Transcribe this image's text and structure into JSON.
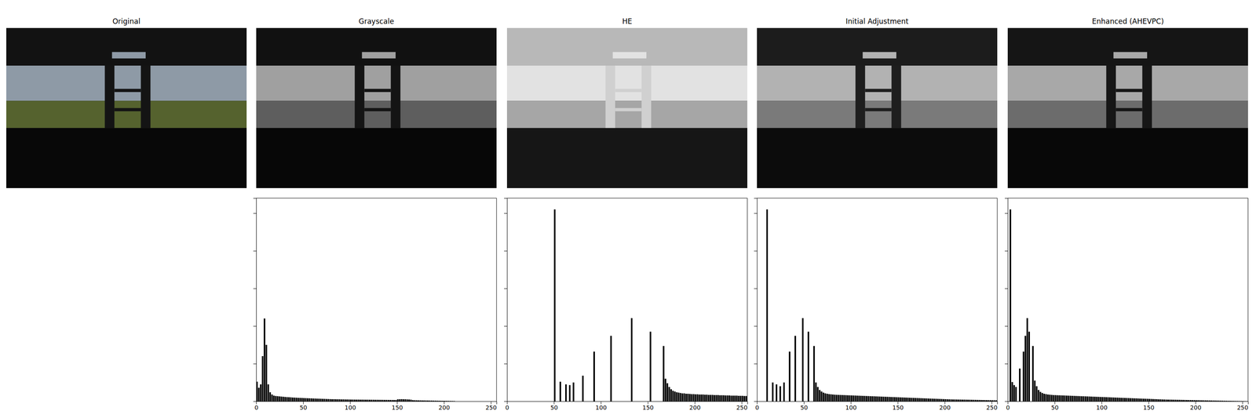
{
  "panels": [
    "Original",
    "Grayscale",
    "HE",
    "Initial Adjustment",
    "Enhanced (AHEVPC)"
  ],
  "chart_data": [
    {
      "type": "histogram",
      "color": "#000000",
      "tick_labels": "x",
      "xlim": [
        0,
        256
      ],
      "ylim": [
        0,
        54000
      ],
      "xticks": [
        0,
        50,
        100,
        150,
        200,
        250
      ],
      "yticks": [
        0,
        10000,
        20000,
        30000,
        40000,
        50000
      ],
      "bins": [
        0,
        2,
        4,
        6,
        8,
        10,
        12,
        14,
        16,
        18,
        20,
        22,
        24,
        26,
        28,
        30,
        32,
        34,
        36,
        38,
        40,
        42,
        44,
        46,
        48,
        50,
        52,
        54,
        56,
        58,
        60,
        62,
        64,
        66,
        68,
        70,
        72,
        74,
        76,
        78,
        80,
        82,
        84,
        86,
        88,
        90,
        92,
        94,
        96,
        98,
        100,
        102,
        104,
        106,
        108,
        110,
        112,
        114,
        116,
        118,
        120,
        122,
        124,
        126,
        128,
        130,
        132,
        134,
        136,
        138,
        140,
        142,
        144,
        146,
        148,
        150,
        152,
        154,
        156,
        158,
        160,
        162,
        164,
        166,
        168,
        170,
        172,
        174,
        176,
        178,
        180,
        182,
        184,
        186,
        188,
        190,
        192,
        194,
        196,
        198,
        200,
        202,
        204,
        206,
        208,
        210,
        212,
        214,
        216,
        218,
        220,
        222,
        224,
        226,
        228,
        230,
        232,
        234,
        236,
        238,
        240,
        242,
        244,
        246,
        248,
        250,
        252,
        254,
        256
      ],
      "counts": [
        5200,
        3600,
        4500,
        12000,
        22000,
        15000,
        4500,
        2400,
        1800,
        1500,
        1400,
        1350,
        1300,
        1250,
        1200,
        1150,
        1100,
        1080,
        1050,
        1000,
        980,
        950,
        920,
        900,
        880,
        850,
        830,
        810,
        790,
        770,
        750,
        730,
        710,
        690,
        670,
        650,
        630,
        610,
        590,
        570,
        560,
        550,
        540,
        530,
        520,
        510,
        500,
        490,
        480,
        470,
        460,
        450,
        445,
        440,
        435,
        430,
        425,
        420,
        415,
        410,
        405,
        400,
        395,
        390,
        385,
        380,
        375,
        370,
        365,
        360,
        355,
        350,
        345,
        340,
        335,
        520,
        540,
        560,
        550,
        530,
        500,
        480,
        420,
        300,
        280,
        260,
        250,
        240,
        230,
        220,
        210,
        200,
        190,
        180,
        170,
        160,
        150,
        140,
        130,
        120,
        110,
        100,
        90,
        80,
        70,
        60,
        0,
        0,
        0,
        0,
        0,
        0,
        0,
        0,
        0,
        0,
        0,
        0,
        0,
        0,
        0,
        0,
        0,
        0,
        0,
        0,
        0,
        0
      ]
    },
    {
      "type": "histogram",
      "color": "#000000",
      "tick_labels": "x",
      "xlim": [
        0,
        256
      ],
      "ylim": [
        0,
        54000
      ],
      "xticks": [
        0,
        50,
        100,
        150,
        200,
        250
      ],
      "yticks": [
        0,
        10000,
        20000,
        30000,
        40000,
        50000
      ],
      "bins": [
        0,
        2,
        4,
        6,
        8,
        10,
        12,
        14,
        16,
        18,
        20,
        22,
        24,
        26,
        28,
        30,
        32,
        34,
        36,
        38,
        40,
        42,
        44,
        46,
        48,
        50,
        52,
        54,
        56,
        58,
        60,
        62,
        64,
        66,
        68,
        70,
        72,
        74,
        76,
        78,
        80,
        82,
        84,
        86,
        88,
        90,
        92,
        94,
        96,
        98,
        100,
        102,
        104,
        106,
        108,
        110,
        112,
        114,
        116,
        118,
        120,
        122,
        124,
        126,
        128,
        130,
        132,
        134,
        136,
        138,
        140,
        142,
        144,
        146,
        148,
        150,
        152,
        154,
        156,
        158,
        160,
        162,
        164,
        166,
        168,
        170,
        172,
        174,
        176,
        178,
        180,
        182,
        184,
        186,
        188,
        190,
        192,
        194,
        196,
        198,
        200,
        202,
        204,
        206,
        208,
        210,
        212,
        214,
        216,
        218,
        220,
        222,
        224,
        226,
        228,
        230,
        232,
        234,
        236,
        238,
        240,
        242,
        244,
        246,
        248,
        250,
        252,
        254,
        256
      ],
      "counts": [
        0,
        0,
        0,
        0,
        0,
        0,
        0,
        0,
        0,
        0,
        0,
        0,
        0,
        0,
        0,
        0,
        0,
        0,
        0,
        0,
        0,
        0,
        0,
        0,
        0,
        51000,
        0,
        0,
        5200,
        0,
        0,
        4500,
        0,
        4300,
        0,
        5000,
        0,
        0,
        0,
        0,
        6800,
        0,
        0,
        0,
        0,
        0,
        13200,
        0,
        0,
        0,
        0,
        0,
        0,
        0,
        0,
        17400,
        0,
        0,
        0,
        0,
        0,
        0,
        0,
        0,
        0,
        0,
        22100,
        0,
        0,
        0,
        0,
        0,
        0,
        0,
        0,
        0,
        18500,
        0,
        0,
        0,
        0,
        0,
        0,
        14700,
        6000,
        4800,
        3800,
        3200,
        2800,
        2600,
        2400,
        2300,
        2200,
        2100,
        2100,
        2000,
        2000,
        1950,
        1900,
        1900,
        1850,
        1850,
        1800,
        1800,
        1800,
        1750,
        1750,
        1700,
        1700,
        1700,
        1650,
        1650,
        1650,
        1600,
        1600,
        1600,
        1550,
        1550,
        1550,
        1500,
        1500,
        1500,
        1500,
        1450,
        1450,
        1450,
        1400,
        1400
      ]
    },
    {
      "type": "histogram",
      "color": "#000000",
      "tick_labels": "x",
      "xlim": [
        0,
        256
      ],
      "ylim": [
        0,
        54000
      ],
      "xticks": [
        0,
        50,
        100,
        150,
        200,
        250
      ],
      "yticks": [
        0,
        10000,
        20000,
        30000,
        40000,
        50000
      ],
      "bins": [
        0,
        2,
        4,
        6,
        8,
        10,
        12,
        14,
        16,
        18,
        20,
        22,
        24,
        26,
        28,
        30,
        32,
        34,
        36,
        38,
        40,
        42,
        44,
        46,
        48,
        50,
        52,
        54,
        56,
        58,
        60,
        62,
        64,
        66,
        68,
        70,
        72,
        74,
        76,
        78,
        80,
        82,
        84,
        86,
        88,
        90,
        92,
        94,
        96,
        98,
        100,
        102,
        104,
        106,
        108,
        110,
        112,
        114,
        116,
        118,
        120,
        122,
        124,
        126,
        128,
        130,
        132,
        134,
        136,
        138,
        140,
        142,
        144,
        146,
        148,
        150,
        152,
        154,
        156,
        158,
        160,
        162,
        164,
        166,
        168,
        170,
        172,
        174,
        176,
        178,
        180,
        182,
        184,
        186,
        188,
        190,
        192,
        194,
        196,
        198,
        200,
        202,
        204,
        206,
        208,
        210,
        212,
        214,
        216,
        218,
        220,
        222,
        224,
        226,
        228,
        230,
        232,
        234,
        236,
        238,
        240,
        242,
        244,
        246,
        248,
        250,
        252,
        254,
        256
      ],
      "counts": [
        0,
        0,
        0,
        0,
        0,
        51000,
        0,
        0,
        5000,
        0,
        4500,
        0,
        4000,
        0,
        5000,
        0,
        0,
        13200,
        0,
        0,
        17400,
        0,
        0,
        0,
        22100,
        0,
        0,
        18500,
        0,
        0,
        14700,
        5000,
        3800,
        3000,
        2600,
        2300,
        2100,
        2000,
        1900,
        1850,
        1800,
        1750,
        1720,
        1700,
        1680,
        1660,
        1640,
        1620,
        1600,
        1580,
        1560,
        1540,
        1520,
        1500,
        1480,
        1460,
        1440,
        1420,
        1400,
        1380,
        1360,
        1340,
        1320,
        1300,
        1280,
        1260,
        1240,
        1220,
        1200,
        1180,
        1160,
        1140,
        1120,
        1100,
        1080,
        1060,
        1040,
        1020,
        1000,
        980,
        960,
        940,
        920,
        900,
        880,
        860,
        840,
        820,
        800,
        780,
        760,
        740,
        720,
        700,
        680,
        660,
        640,
        620,
        600,
        580,
        560,
        540,
        520,
        500,
        490,
        480,
        470,
        460,
        450,
        440,
        430,
        420,
        410,
        400,
        390,
        380,
        370,
        360,
        350,
        340,
        330,
        320,
        310,
        300,
        290,
        280,
        270,
        260
      ]
    },
    {
      "type": "histogram",
      "color": "#000000",
      "tick_labels": "x",
      "xlim": [
        0,
        256
      ],
      "ylim": [
        0,
        54000
      ],
      "xticks": [
        0,
        50,
        100,
        150,
        200,
        250
      ],
      "yticks": [
        0,
        10000,
        20000,
        30000,
        40000,
        50000
      ],
      "bins": [
        0,
        2,
        4,
        6,
        8,
        10,
        12,
        14,
        16,
        18,
        20,
        22,
        24,
        26,
        28,
        30,
        32,
        34,
        36,
        38,
        40,
        42,
        44,
        46,
        48,
        50,
        52,
        54,
        56,
        58,
        60,
        62,
        64,
        66,
        68,
        70,
        72,
        74,
        76,
        78,
        80,
        82,
        84,
        86,
        88,
        90,
        92,
        94,
        96,
        98,
        100,
        102,
        104,
        106,
        108,
        110,
        112,
        114,
        116,
        118,
        120,
        122,
        124,
        126,
        128,
        130,
        132,
        134,
        136,
        138,
        140,
        142,
        144,
        146,
        148,
        150,
        152,
        154,
        156,
        158,
        160,
        162,
        164,
        166,
        168,
        170,
        172,
        174,
        176,
        178,
        180,
        182,
        184,
        186,
        188,
        190,
        192,
        194,
        196,
        198,
        200,
        202,
        204,
        206,
        208,
        210,
        212,
        214,
        216,
        218,
        220,
        222,
        224,
        226,
        228,
        230,
        232,
        234,
        236,
        238,
        240,
        242,
        244,
        246,
        248,
        250,
        252,
        254,
        256
      ],
      "counts": [
        0,
        51000,
        5100,
        4300,
        3800,
        0,
        8700,
        0,
        13200,
        17400,
        22100,
        18500,
        0,
        14700,
        5500,
        4000,
        3000,
        2500,
        2200,
        2000,
        1900,
        1800,
        1750,
        1700,
        1650,
        1630,
        1610,
        1590,
        1570,
        1550,
        1530,
        1510,
        1490,
        1470,
        1450,
        1430,
        1410,
        1390,
        1370,
        1350,
        1330,
        1310,
        1290,
        1270,
        1250,
        1230,
        1210,
        1190,
        1170,
        1150,
        1130,
        1110,
        1090,
        1070,
        1050,
        1030,
        1010,
        990,
        970,
        950,
        930,
        910,
        890,
        870,
        850,
        830,
        810,
        790,
        770,
        750,
        730,
        710,
        690,
        670,
        650,
        630,
        610,
        590,
        570,
        550,
        530,
        510,
        490,
        470,
        450,
        440,
        430,
        420,
        410,
        400,
        390,
        380,
        370,
        360,
        350,
        340,
        330,
        320,
        310,
        300,
        290,
        280,
        270,
        260,
        250,
        240,
        230,
        220,
        210,
        200,
        190,
        180,
        170,
        160,
        150,
        140,
        130,
        120,
        110,
        100,
        90,
        80,
        70,
        60,
        50,
        40,
        30,
        20
      ]
    }
  ]
}
